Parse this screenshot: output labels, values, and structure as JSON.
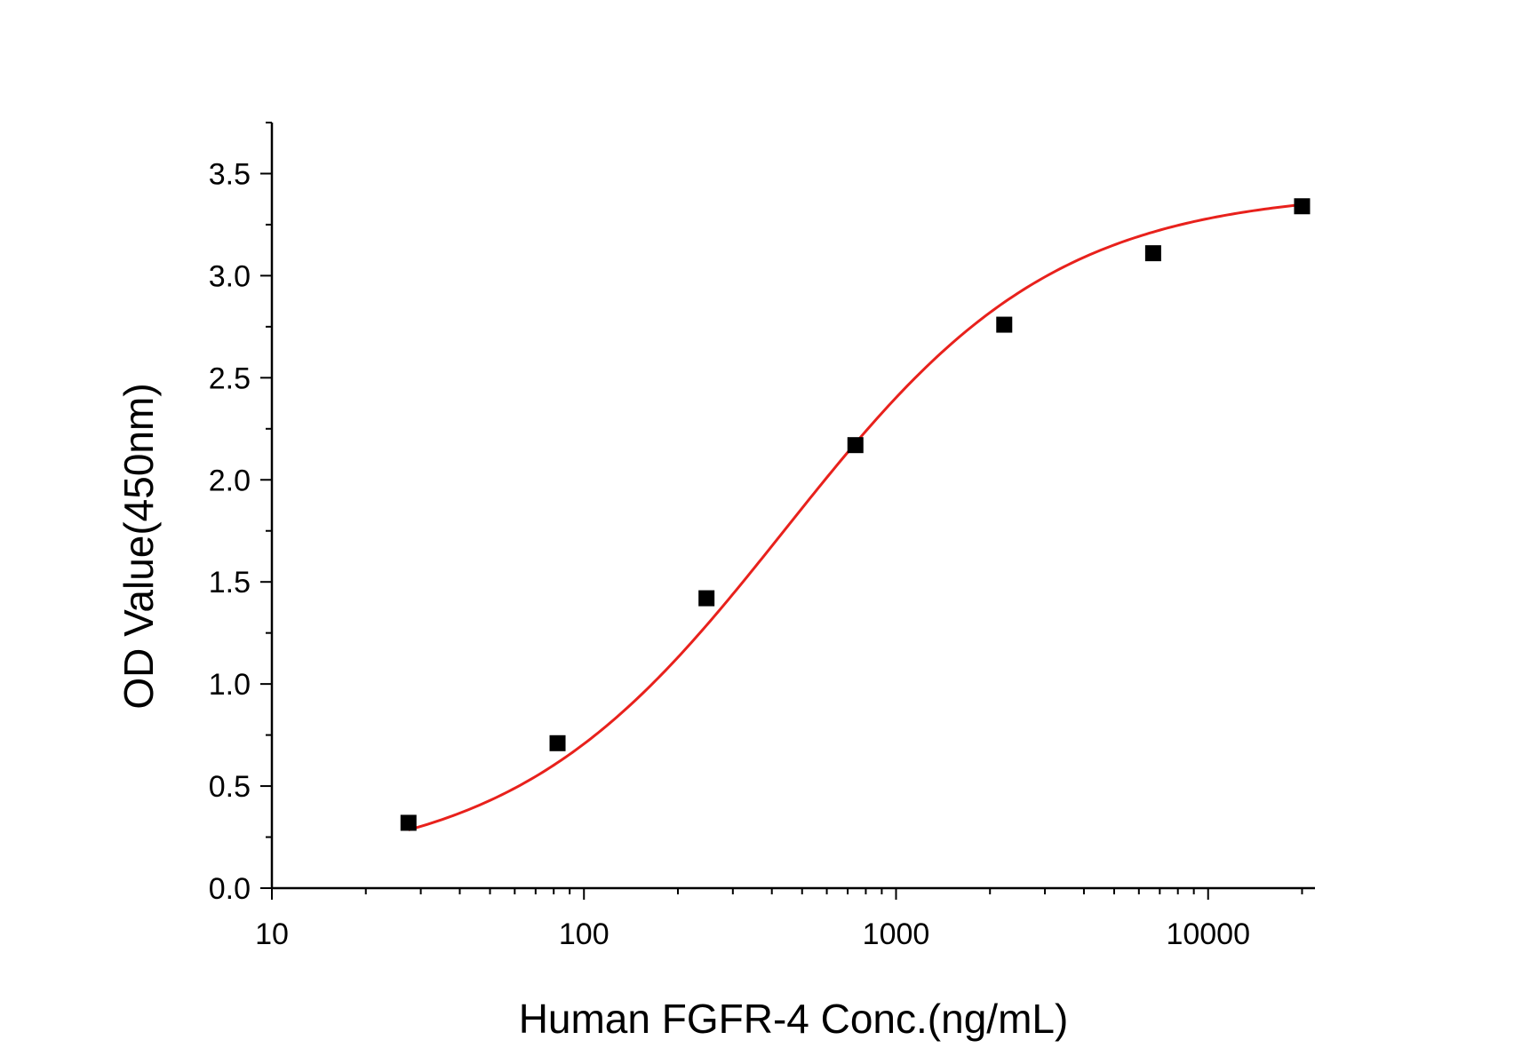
{
  "chart_data": {
    "type": "scatter",
    "title": "",
    "xlabel": "Human FGFR-4 Conc.(ng/mL)",
    "ylabel": "OD Value(450nm)",
    "x_scale": "log",
    "xlim": [
      10,
      22000
    ],
    "ylim": [
      0,
      3.75
    ],
    "x_ticks": [
      10,
      100,
      1000,
      10000
    ],
    "x_tick_labels": [
      "10",
      "100",
      "1000",
      "10000"
    ],
    "y_ticks": [
      0,
      0.5,
      1,
      1.5,
      2,
      2.5,
      3,
      3.5
    ],
    "y_tick_labels": [
      "0.0",
      "0.5",
      "1.0",
      "1.5",
      "2.0",
      "2.5",
      "3.0",
      "3.5"
    ],
    "grid": false,
    "legend": "none",
    "series": [
      {
        "marker": "square",
        "color": "#000000",
        "x": [
          27.4,
          82.3,
          247,
          741,
          2222,
          6667,
          20000
        ],
        "y": [
          0.32,
          0.71,
          1.42,
          2.17,
          2.76,
          3.11,
          3.34
        ]
      }
    ],
    "fit_curve": {
      "type": "4PL",
      "color": "#e8211c",
      "bottom": 0.09,
      "top": 3.42,
      "ec50": 440,
      "hill": 1.0,
      "x_range": [
        27.4,
        20000
      ]
    }
  }
}
